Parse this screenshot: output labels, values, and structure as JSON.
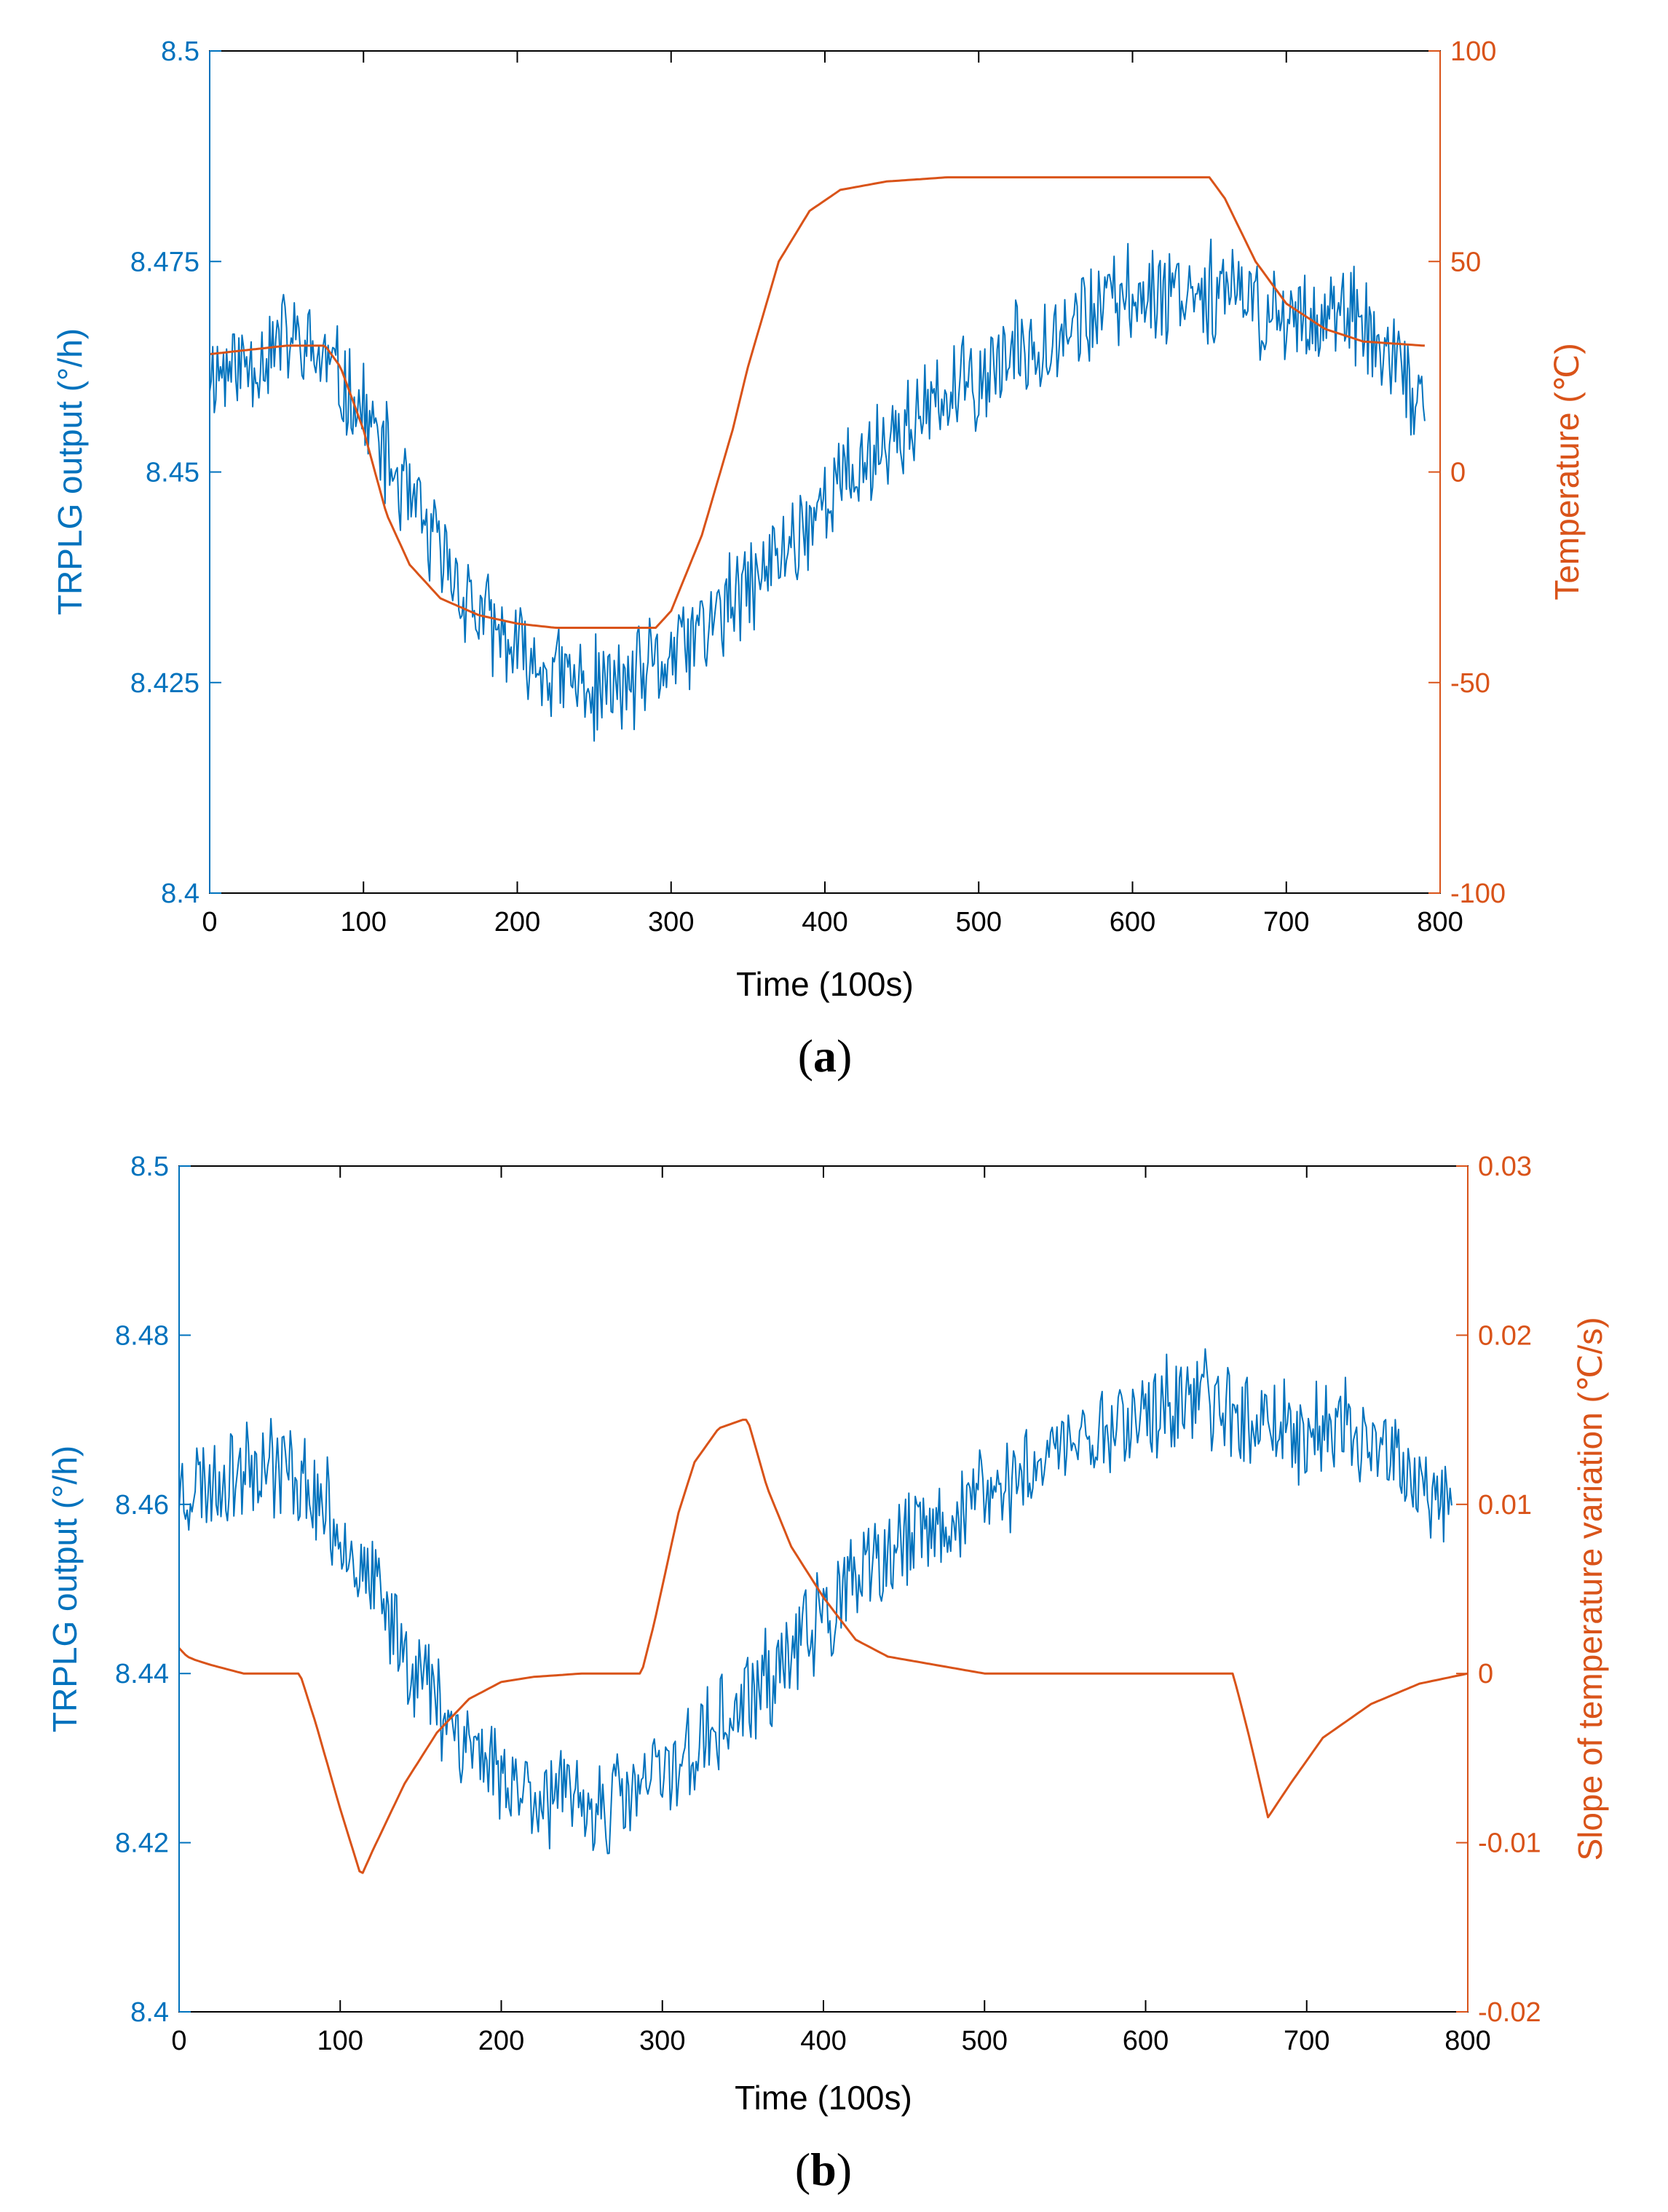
{
  "colors": {
    "left_axis": "#0072BD",
    "right_axis": "#D95319",
    "frame": "#000000"
  },
  "chart_data": [
    {
      "type": "line",
      "panel_label": "a",
      "xlabel": "Time (100s)",
      "ylabel_left": "TRPLG output (°/h)",
      "ylabel_right": "Temperature (℃)",
      "xlim": [
        0,
        800
      ],
      "ylim_left": [
        8.4,
        8.5
      ],
      "ylim_right": [
        -100,
        100
      ],
      "xticks": [
        "0",
        "100",
        "200",
        "300",
        "400",
        "500",
        "600",
        "700",
        "800"
      ],
      "yticks_left": [
        "8.4",
        "8.425",
        "8.45",
        "8.475",
        "8.5"
      ],
      "yticks_right": [
        "-100",
        "-50",
        "0",
        "50",
        "100"
      ],
      "series": [
        {
          "name": "TRPLG output",
          "axis": "left",
          "noisy": true,
          "noise_amplitude": 0.007,
          "x": [
            0,
            25,
            50,
            75,
            100,
            125,
            150,
            175,
            200,
            225,
            250,
            275,
            300,
            325,
            350,
            375,
            400,
            425,
            450,
            475,
            500,
            525,
            550,
            575,
            600,
            625,
            650,
            675,
            700,
            725,
            750,
            775,
            790
          ],
          "y": [
            8.462,
            8.463,
            8.466,
            8.463,
            8.457,
            8.448,
            8.44,
            8.433,
            8.428,
            8.426,
            8.424,
            8.425,
            8.428,
            8.432,
            8.436,
            8.441,
            8.447,
            8.451,
            8.455,
            8.458,
            8.461,
            8.464,
            8.467,
            8.469,
            8.471,
            8.472,
            8.472,
            8.47,
            8.468,
            8.469,
            8.467,
            8.461,
            8.457
          ]
        },
        {
          "name": "Temperature",
          "axis": "right",
          "x": [
            0,
            25,
            50,
            75,
            85,
            100,
            115,
            130,
            150,
            175,
            200,
            225,
            250,
            290,
            300,
            320,
            340,
            350,
            370,
            390,
            410,
            440,
            480,
            550,
            650,
            660,
            680,
            700,
            725,
            750,
            790
          ],
          "y": [
            28,
            29,
            30,
            30,
            25,
            10,
            -10,
            -22,
            -30,
            -34,
            -36,
            -37,
            -37,
            -37,
            -33,
            -15,
            10,
            25,
            50,
            62,
            67,
            69,
            70,
            70,
            70,
            65,
            50,
            40,
            34,
            31,
            30
          ]
        }
      ]
    },
    {
      "type": "line",
      "panel_label": "b",
      "xlabel": "Time (100s)",
      "ylabel_left": "TRPLG output (°/h)",
      "ylabel_right": "Slope of temperature variation (℃/s)",
      "xlim": [
        0,
        800
      ],
      "ylim_left": [
        8.4,
        8.5
      ],
      "ylim_right": [
        -0.02,
        0.03
      ],
      "xticks": [
        "0",
        "100",
        "200",
        "300",
        "400",
        "500",
        "600",
        "700",
        "800"
      ],
      "yticks_left": [
        "8.4",
        "8.42",
        "8.44",
        "8.46",
        "8.48",
        "8.5"
      ],
      "yticks_right": [
        "-0.02",
        "-0.01",
        "0",
        "0.01",
        "0.02",
        "0.03"
      ],
      "series": [
        {
          "name": "TRPLG output",
          "axis": "left",
          "noisy": true,
          "noise_amplitude": 0.007,
          "x": [
            0,
            25,
            50,
            75,
            100,
            125,
            150,
            175,
            200,
            225,
            250,
            275,
            300,
            325,
            350,
            375,
            400,
            425,
            450,
            475,
            500,
            525,
            550,
            575,
            600,
            625,
            650,
            675,
            700,
            725,
            750,
            775,
            790
          ],
          "y": [
            8.462,
            8.463,
            8.466,
            8.463,
            8.457,
            8.448,
            8.44,
            8.433,
            8.428,
            8.426,
            8.424,
            8.425,
            8.428,
            8.432,
            8.436,
            8.441,
            8.447,
            8.451,
            8.455,
            8.458,
            8.461,
            8.464,
            8.467,
            8.469,
            8.471,
            8.472,
            8.472,
            8.47,
            8.468,
            8.469,
            8.467,
            8.461,
            8.457
          ]
        },
        {
          "name": "Slope of temperature variation",
          "axis": "right",
          "x": [
            0,
            5,
            10,
            20,
            40,
            60,
            75,
            85,
            100,
            113,
            120,
            140,
            160,
            180,
            200,
            220,
            250,
            287,
            295,
            310,
            320,
            335,
            350,
            353,
            365,
            380,
            400,
            420,
            440,
            470,
            500,
            550,
            600,
            654,
            657,
            665,
            676,
            690,
            710,
            740,
            770,
            790,
            800
          ],
          "y": [
            0.0015,
            0.001,
            0.0008,
            0.0005,
            0.0,
            0.0,
            0.0,
            -0.003,
            -0.008,
            -0.012,
            -0.0105,
            -0.0065,
            -0.0035,
            -0.0015,
            -0.0005,
            -0.0002,
            0.0,
            0.0,
            0.003,
            0.0095,
            0.0125,
            0.0145,
            0.015,
            0.015,
            0.011,
            0.0075,
            0.0045,
            0.002,
            0.001,
            0.0005,
            0.0,
            0.0,
            0.0,
            0.0,
            -0.001,
            -0.004,
            -0.0085,
            -0.0065,
            -0.0038,
            -0.0018,
            -0.0006,
            -0.0002,
            0.0
          ]
        }
      ]
    }
  ]
}
